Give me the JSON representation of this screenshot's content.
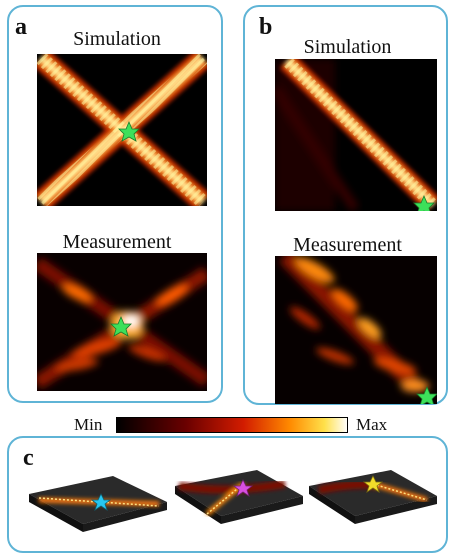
{
  "panels": {
    "a": {
      "label": "a",
      "top_title": "Simulation",
      "bottom_title": "Measurement"
    },
    "b": {
      "label": "b",
      "top_title": "Simulation",
      "bottom_title": "Measurement"
    },
    "c": {
      "label": "c"
    }
  },
  "colorbar": {
    "min_label": "Min",
    "max_label": "Max"
  },
  "colors": {
    "frame": "#5fb4d6",
    "star_sim": "#3de05a",
    "star_c1": "#27c6f0",
    "star_c2": "#d84fe0",
    "star_c3": "#f2dc2a"
  },
  "icons": [
    "star-marker-icon"
  ]
}
